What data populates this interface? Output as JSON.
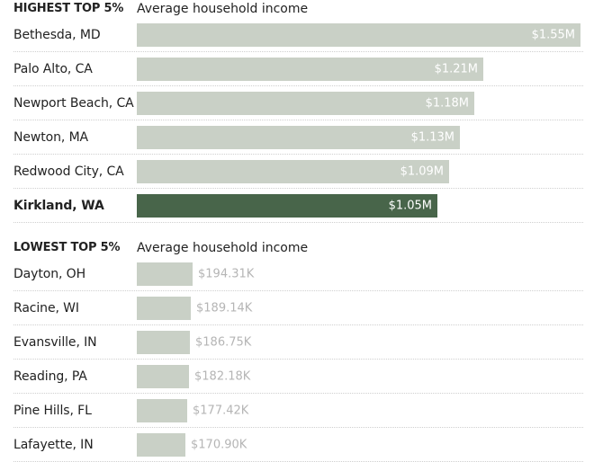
{
  "colors": {
    "bar": "#c9d0c6",
    "highlight": "#48654a",
    "label_inside": "#ffffff",
    "label_outside": "#b5b5b5"
  },
  "chart_data": [
    {
      "type": "bar",
      "orientation": "horizontal",
      "title": "HIGHEST TOP 5%",
      "metric": "Average household income",
      "unit": "USD",
      "categories": [
        "Bethesda, MD",
        "Palo Alto, CA",
        "Newport Beach, CA",
        "Newton, MA",
        "Redwood City, CA",
        "Kirkland, WA"
      ],
      "values": [
        1550000,
        1210000,
        1180000,
        1130000,
        1090000,
        1050000
      ],
      "labels": [
        "$1.55M",
        "$1.21M",
        "$1.18M",
        "$1.13M",
        "$1.09M",
        "$1.05M"
      ],
      "highlight": "Kirkland, WA",
      "xlim": [
        0,
        1550000
      ],
      "grid": false
    },
    {
      "type": "bar",
      "orientation": "horizontal",
      "title": "LOWEST TOP 5%",
      "metric": "Average household income",
      "unit": "USD",
      "categories": [
        "Dayton, OH",
        "Racine, WI",
        "Evansville, IN",
        "Reading, PA",
        "Pine Hills, FL",
        "Lafayette, IN"
      ],
      "values": [
        194310,
        189140,
        186750,
        182180,
        177420,
        170900
      ],
      "labels": [
        "$194.31K",
        "$189.14K",
        "$186.75K",
        "$182.18K",
        "$177.42K",
        "$170.90K"
      ],
      "highlight": null,
      "xlim": [
        0,
        1550000
      ],
      "grid": false
    }
  ]
}
